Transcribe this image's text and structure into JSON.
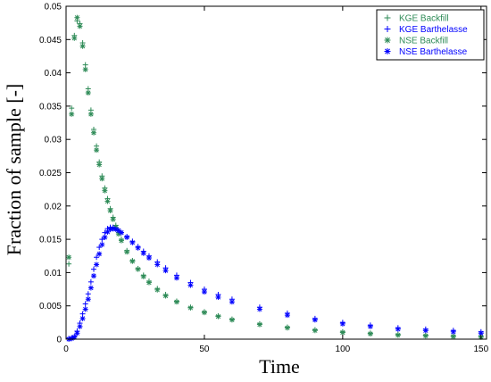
{
  "chart_data": {
    "type": "scatter",
    "xlabel": "Time",
    "ylabel": "Fraction of sample [-]",
    "xlim": [
      0,
      152
    ],
    "ylim": [
      0,
      0.05
    ],
    "grid": false,
    "legend_position": "top-right",
    "x_ticks": [
      0,
      50,
      100,
      150
    ],
    "y_ticks": [
      0,
      0.005,
      0.01,
      0.015,
      0.02,
      0.025,
      0.03,
      0.035,
      0.04,
      0.045,
      0.05
    ],
    "x_tick_labels": [
      "0",
      "50",
      "100",
      "150"
    ],
    "y_tick_labels": [
      "0",
      "0.005",
      "0.01",
      "0.015",
      "0.02",
      "0.025",
      "0.03",
      "0.035",
      "0.04",
      "0.045",
      "0.05"
    ],
    "series": [
      {
        "name": "KGE Backfill",
        "marker": "plus",
        "color": "#2e8b57",
        "x": [
          1,
          2,
          3,
          4,
          5,
          6,
          7,
          8,
          9,
          10,
          11,
          12,
          13,
          14,
          15,
          16,
          17,
          18,
          19,
          20,
          22,
          24,
          26,
          28,
          30,
          33,
          36,
          40,
          45,
          50,
          55,
          60,
          70,
          80,
          90,
          100,
          110,
          120,
          130,
          140,
          150
        ],
        "y": [
          0.0113,
          0.0347,
          0.0456,
          0.0478,
          0.0474,
          0.0445,
          0.0412,
          0.0376,
          0.0344,
          0.0315,
          0.029,
          0.0266,
          0.0245,
          0.0227,
          0.0211,
          0.0196,
          0.0183,
          0.0171,
          0.016,
          0.015,
          0.0133,
          0.0118,
          0.0106,
          0.0096,
          0.0087,
          0.0076,
          0.0067,
          0.0057,
          0.0048,
          0.0041,
          0.0035,
          0.003,
          0.0023,
          0.0018,
          0.0014,
          0.0011,
          0.0009,
          0.0007,
          0.0006,
          0.0005,
          0.0004
        ]
      },
      {
        "name": "KGE Barthelasse",
        "marker": "plus",
        "color": "#0000ff",
        "x": [
          1,
          2,
          3,
          4,
          5,
          6,
          7,
          8,
          9,
          10,
          11,
          12,
          13,
          14,
          15,
          16,
          17,
          18,
          19,
          20,
          22,
          24,
          26,
          28,
          30,
          33,
          36,
          40,
          45,
          50,
          55,
          60,
          70,
          80,
          90,
          100,
          110,
          120,
          130,
          140,
          150
        ],
        "y": [
          0.0001,
          0.0002,
          0.0004,
          0.0012,
          0.0024,
          0.0038,
          0.0053,
          0.0068,
          0.0086,
          0.0105,
          0.0123,
          0.0138,
          0.015,
          0.016,
          0.0166,
          0.0168,
          0.0168,
          0.0166,
          0.0163,
          0.016,
          0.0154,
          0.0147,
          0.0139,
          0.0132,
          0.0125,
          0.0116,
          0.0107,
          0.0096,
          0.0085,
          0.0075,
          0.0067,
          0.006,
          0.0048,
          0.0039,
          0.0031,
          0.0025,
          0.0021,
          0.0017,
          0.0015,
          0.0013,
          0.0011
        ]
      },
      {
        "name": "NSE Backfill",
        "marker": "star",
        "color": "#2e8b57",
        "x": [
          1,
          2,
          3,
          4,
          5,
          6,
          7,
          8,
          9,
          10,
          11,
          12,
          13,
          14,
          15,
          16,
          17,
          18,
          19,
          20,
          22,
          24,
          26,
          28,
          30,
          33,
          36,
          40,
          45,
          50,
          55,
          60,
          70,
          80,
          90,
          100,
          110,
          120,
          130,
          140,
          150
        ],
        "y": [
          0.0123,
          0.0338,
          0.0452,
          0.0483,
          0.047,
          0.044,
          0.0405,
          0.037,
          0.0338,
          0.031,
          0.0284,
          0.0262,
          0.0241,
          0.0223,
          0.0207,
          0.0193,
          0.018,
          0.0168,
          0.0158,
          0.0148,
          0.0131,
          0.0117,
          0.0105,
          0.0094,
          0.0085,
          0.0074,
          0.0065,
          0.0056,
          0.0047,
          0.004,
          0.0034,
          0.0029,
          0.0022,
          0.0017,
          0.0013,
          0.001,
          0.0008,
          0.0006,
          0.0005,
          0.0004,
          0.0003
        ]
      },
      {
        "name": "NSE Barthelasse",
        "marker": "star",
        "color": "#0000ff",
        "x": [
          1,
          2,
          3,
          4,
          5,
          6,
          7,
          8,
          9,
          10,
          11,
          12,
          13,
          14,
          15,
          16,
          17,
          18,
          19,
          20,
          22,
          24,
          26,
          28,
          30,
          33,
          36,
          40,
          45,
          50,
          55,
          60,
          70,
          80,
          90,
          100,
          110,
          120,
          130,
          140,
          150
        ],
        "y": [
          0.0,
          0.0001,
          0.0003,
          0.0009,
          0.0019,
          0.0031,
          0.0045,
          0.006,
          0.0077,
          0.0095,
          0.0112,
          0.0128,
          0.0142,
          0.0153,
          0.0161,
          0.0165,
          0.0166,
          0.0165,
          0.0163,
          0.016,
          0.0153,
          0.0145,
          0.0137,
          0.0129,
          0.0122,
          0.0112,
          0.0103,
          0.0092,
          0.0081,
          0.0071,
          0.0063,
          0.0056,
          0.0045,
          0.0036,
          0.0029,
          0.0023,
          0.0019,
          0.0015,
          0.0013,
          0.0011,
          0.0009
        ]
      }
    ]
  }
}
